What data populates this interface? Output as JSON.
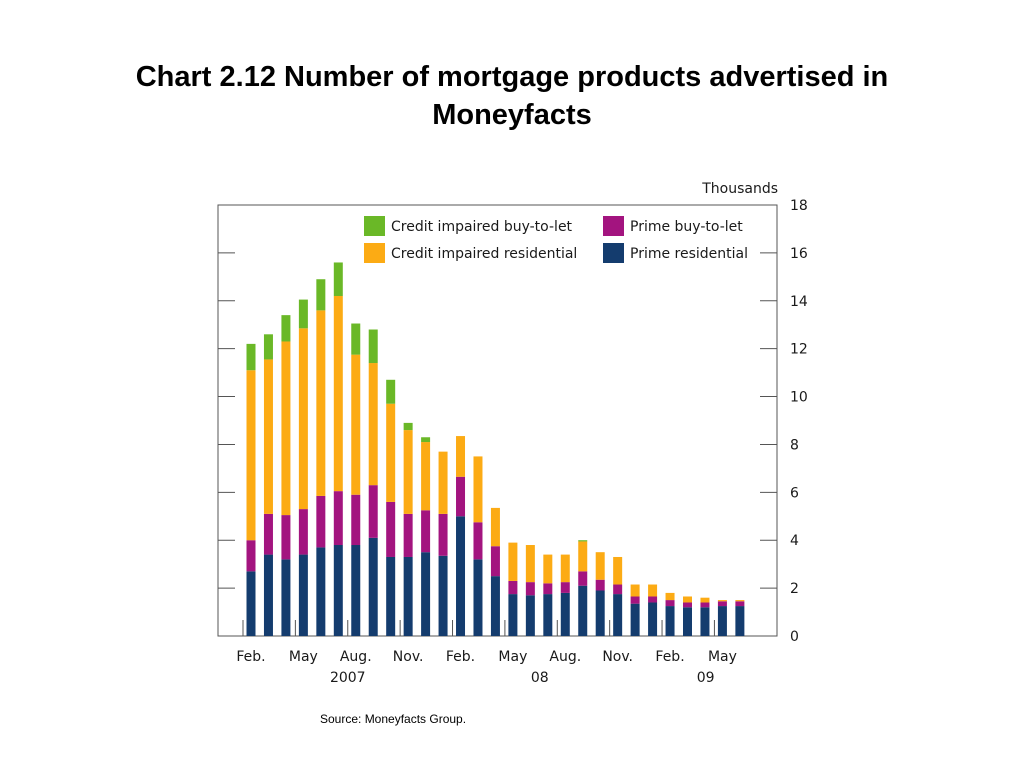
{
  "title_lines": [
    "Chart 2.12  Number of mortgage products advertised in",
    "Moneyfacts"
  ],
  "source": "Source:  Moneyfacts Group.",
  "colors": {
    "prime_residential": "#143c6e",
    "prime_btl": "#a3147f",
    "ci_residential": "#fcab14",
    "ci_btl": "#6ab827",
    "axis": "#555555"
  },
  "chart_data": {
    "type": "bar",
    "stacked": true,
    "unit_label": "Thousands",
    "ylim": [
      0,
      18
    ],
    "y_ticks": [
      0,
      2,
      4,
      6,
      8,
      10,
      12,
      14,
      16,
      18
    ],
    "x_tick_labels": [
      {
        "month": "Feb.",
        "year": "",
        "index": 0
      },
      {
        "month": "May",
        "year": "2007",
        "index": 3
      },
      {
        "month": "Aug.",
        "year": "",
        "index": 6
      },
      {
        "month": "Nov.",
        "year": "",
        "index": 9
      },
      {
        "month": "Feb.",
        "year": "",
        "index": 12
      },
      {
        "month": "May",
        "year": "08",
        "index": 15
      },
      {
        "month": "Aug.",
        "year": "",
        "index": 18
      },
      {
        "month": "Nov.",
        "year": "",
        "index": 21
      },
      {
        "month": "Feb.",
        "year": "",
        "index": 24
      },
      {
        "month": "May",
        "year": "09",
        "index": 27
      }
    ],
    "year_labels": [
      {
        "label": "2007",
        "index": 6
      },
      {
        "label": "08",
        "index": 17
      },
      {
        "label": "09",
        "index": 26.5
      }
    ],
    "legend_position": "top",
    "series": [
      {
        "name": "Prime residential",
        "color_key": "prime_residential",
        "values": [
          2.7,
          3.4,
          3.2,
          3.4,
          3.7,
          3.8,
          3.8,
          4.1,
          3.3,
          3.3,
          3.5,
          3.35,
          5.0,
          3.2,
          2.5,
          1.75,
          1.7,
          1.75,
          1.8,
          2.1,
          1.9,
          1.75,
          1.35,
          1.4,
          1.25,
          1.2,
          1.2,
          1.25,
          1.25
        ]
      },
      {
        "name": "Prime buy-to-let",
        "color_key": "prime_btl",
        "values": [
          1.3,
          1.7,
          1.85,
          1.9,
          2.15,
          2.25,
          2.1,
          2.2,
          2.3,
          1.8,
          1.75,
          1.75,
          1.65,
          1.55,
          1.25,
          0.55,
          0.55,
          0.45,
          0.45,
          0.6,
          0.45,
          0.4,
          0.3,
          0.25,
          0.25,
          0.2,
          0.2,
          0.2,
          0.2
        ]
      },
      {
        "name": "Credit impaired residential",
        "color_key": "ci_residential",
        "values": [
          7.1,
          6.45,
          7.25,
          7.55,
          7.75,
          8.15,
          5.85,
          5.1,
          4.1,
          3.5,
          2.85,
          2.6,
          1.7,
          2.75,
          1.6,
          1.6,
          1.55,
          1.2,
          1.15,
          1.25,
          1.15,
          1.15,
          0.5,
          0.5,
          0.3,
          0.25,
          0.2,
          0.05,
          0.05
        ]
      },
      {
        "name": "Credit impaired buy-to-let",
        "color_key": "ci_btl",
        "values": [
          1.1,
          1.05,
          1.1,
          1.2,
          1.3,
          1.4,
          1.3,
          1.4,
          1.0,
          0.3,
          0.2,
          0.0,
          0.0,
          0.0,
          0.0,
          0.0,
          0.0,
          0.0,
          0.0,
          0.05,
          0.0,
          0.0,
          0.0,
          0.0,
          0.0,
          0.0,
          0.0,
          0.0,
          0.0
        ]
      }
    ],
    "legend": [
      {
        "name": "Credit impaired buy-to-let",
        "color_key": "ci_btl"
      },
      {
        "name": "Prime buy-to-let",
        "color_key": "prime_btl"
      },
      {
        "name": "Credit impaired residential",
        "color_key": "ci_residential"
      },
      {
        "name": "Prime residential",
        "color_key": "prime_residential"
      }
    ]
  }
}
